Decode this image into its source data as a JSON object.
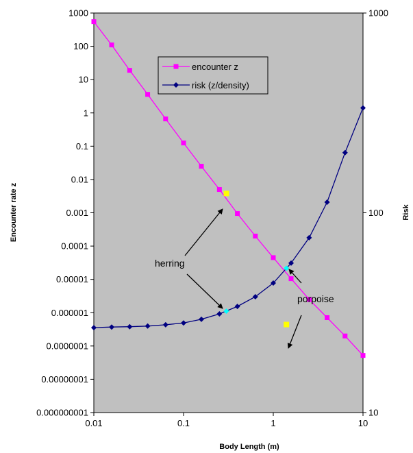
{
  "chart_data": {
    "type": "line",
    "x_axis": {
      "label": "Body Length   (m)",
      "scale": "log",
      "range": [
        0.01,
        10
      ],
      "tick_labels": [
        "0.01",
        "0.1",
        "1",
        "10"
      ],
      "tick_values": [
        0.01,
        0.1,
        1,
        10
      ]
    },
    "y_axis_left": {
      "label": "Encounter rate z",
      "scale": "log",
      "range": [
        1e-09,
        1000
      ],
      "tick_labels": [
        "0.000000001",
        "0.00000001",
        "0.0000001",
        "0.000001",
        "0.00001",
        "0.0001",
        "0.001",
        "0.01",
        "0.1",
        "1",
        "10",
        "100",
        "1000"
      ],
      "tick_values": [
        1e-09,
        1e-08,
        1e-07,
        1e-06,
        1e-05,
        0.0001,
        0.001,
        0.01,
        0.1,
        1,
        10,
        100,
        1000
      ]
    },
    "y_axis_right": {
      "label": "Risk",
      "scale": "log",
      "range": [
        10,
        1000
      ],
      "tick_labels": [
        "10",
        "100",
        "1000"
      ],
      "tick_values": [
        10,
        100,
        1000
      ]
    },
    "plot_background": "#c0c0c0",
    "grid": false,
    "legend": {
      "placement": "upper-center",
      "entries": [
        {
          "label": "encounter  z",
          "color": "#ff00ff",
          "marker": "square"
        },
        {
          "label": "risk (z/density)",
          "color": "#000080",
          "marker": "diamond"
        }
      ]
    },
    "series": [
      {
        "name": "encounter  z",
        "axis": "left",
        "color": "#ff00ff",
        "marker": "square",
        "x": [
          0.01,
          0.0158,
          0.0251,
          0.0398,
          0.0631,
          0.1,
          0.158,
          0.251,
          0.398,
          0.631,
          1.0,
          1.58,
          2.51,
          3.98,
          6.31,
          10.0
        ],
        "y": [
          550,
          110,
          19,
          3.6,
          0.66,
          0.125,
          0.025,
          0.005,
          0.00095,
          0.0002,
          4.5e-05,
          1.05e-05,
          2.5e-06,
          7.1e-07,
          2e-07,
          5.2e-08
        ]
      },
      {
        "name": "risk (z/density)",
        "axis": "right",
        "color": "#000080",
        "marker": "diamond",
        "x": [
          0.01,
          0.0158,
          0.0251,
          0.0398,
          0.0631,
          0.1,
          0.158,
          0.251,
          0.398,
          0.631,
          1.0,
          1.58,
          2.51,
          3.98,
          6.31,
          10.0
        ],
        "y": [
          26.6,
          26.8,
          26.9,
          27.1,
          27.5,
          28.1,
          29.3,
          31.2,
          34.0,
          38.0,
          44.5,
          56.0,
          75.0,
          113,
          200,
          335
        ]
      }
    ],
    "highlight_points": [
      {
        "axis": "left",
        "x": 0.3,
        "y": 0.0038,
        "color": "#ffff00"
      },
      {
        "axis": "left",
        "x": 1.4,
        "y": 4.4e-07,
        "color": "#ffff00"
      },
      {
        "axis": "right",
        "x": 0.3,
        "y": 32.2,
        "color": "#00ffff"
      },
      {
        "axis": "right",
        "x": 1.4,
        "y": 52.8,
        "color": "#00ffff"
      }
    ],
    "annotations": [
      {
        "text": "herring"
      },
      {
        "text": "porpoise"
      }
    ]
  }
}
